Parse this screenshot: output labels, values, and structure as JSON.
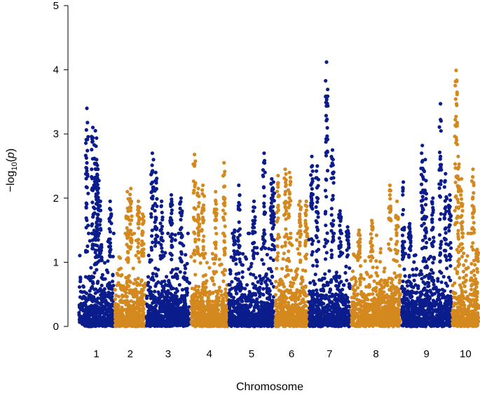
{
  "chart_data": {
    "type": "scatter",
    "subtype": "manhattan",
    "xlabel": "Chromosome",
    "ylabel_prefix": "−log",
    "ylabel_sub": "10",
    "ylabel_paren_open": "(",
    "ylabel_var": "p",
    "ylabel_paren_close": ")",
    "ylim": [
      0,
      5
    ],
    "yticks": [
      0,
      1,
      2,
      3,
      4,
      5
    ],
    "colors": {
      "odd": "#0b1c8c",
      "even": "#d4891e"
    },
    "chromosomes": [
      {
        "label": "1",
        "color": "odd",
        "range": [
          0.0,
          8.5
        ],
        "peaks": [
          [
            2.0,
            3.4
          ],
          [
            3.4,
            3.1
          ],
          [
            4.0,
            3.05
          ],
          [
            4.3,
            2.6
          ],
          [
            4.6,
            2.45
          ],
          [
            5.2,
            1.95
          ],
          [
            7.5,
            1.95
          ]
        ]
      },
      {
        "label": "2",
        "color": "even",
        "range": [
          8.5,
          16.0
        ],
        "peaks": [
          [
            11.6,
            2.1
          ],
          [
            12.4,
            2.15
          ],
          [
            14.2,
            1.95
          ],
          [
            15.2,
            1.75
          ]
        ]
      },
      {
        "label": "3",
        "color": "odd",
        "range": [
          16.0,
          26.5
        ],
        "peaks": [
          [
            17.5,
            2.7
          ],
          [
            18.3,
            2.4
          ],
          [
            19.7,
            1.95
          ],
          [
            22.0,
            2.05
          ],
          [
            24.3,
            2.0
          ]
        ]
      },
      {
        "label": "4",
        "color": "even",
        "range": [
          26.5,
          35.5
        ],
        "peaks": [
          [
            27.5,
            2.68
          ],
          [
            28.4,
            2.15
          ],
          [
            29.5,
            2.2
          ],
          [
            32.5,
            2.1
          ],
          [
            34.5,
            2.55
          ]
        ]
      },
      {
        "label": "5",
        "color": "odd",
        "range": [
          35.5,
          46.5
        ],
        "peaks": [
          [
            37.0,
            1.5
          ],
          [
            38.0,
            2.2
          ],
          [
            41.6,
            1.95
          ],
          [
            44.0,
            2.7
          ],
          [
            45.8,
            2.3
          ],
          [
            46.2,
            2.25
          ]
        ]
      },
      {
        "label": "6",
        "color": "even",
        "range": [
          46.5,
          54.5
        ],
        "peaks": [
          [
            47.3,
            2.35
          ],
          [
            49.0,
            2.45
          ],
          [
            50.0,
            2.4
          ],
          [
            52.5,
            1.95
          ],
          [
            54.0,
            1.95
          ]
        ]
      },
      {
        "label": "7",
        "color": "odd",
        "range": [
          54.5,
          64.5
        ],
        "peaks": [
          [
            55.3,
            2.65
          ],
          [
            56.6,
            2.5
          ],
          [
            58.8,
            4.12
          ],
          [
            60.2,
            2.75
          ],
          [
            62.0,
            1.8
          ],
          [
            63.8,
            1.55
          ]
        ]
      },
      {
        "label": "8",
        "color": "even",
        "range": [
          64.5,
          76.5
        ],
        "peaks": [
          [
            66.5,
            1.5
          ],
          [
            69.5,
            1.65
          ],
          [
            73.8,
            2.2
          ],
          [
            75.5,
            1.95
          ]
        ]
      },
      {
        "label": "9",
        "color": "odd",
        "range": [
          76.5,
          88.5
        ],
        "peaks": [
          [
            77.0,
            2.25
          ],
          [
            78.5,
            1.6
          ],
          [
            81.5,
            2.82
          ],
          [
            82.2,
            2.6
          ],
          [
            84.0,
            2.0
          ],
          [
            85.8,
            3.47
          ],
          [
            87.0,
            2.38
          ],
          [
            88.0,
            2.05
          ]
        ]
      },
      {
        "label": "10",
        "color": "even",
        "range": [
          88.5,
          95.0
        ],
        "peaks": [
          [
            89.5,
            3.99
          ],
          [
            90.0,
            2.65
          ],
          [
            90.8,
            2.3
          ],
          [
            93.5,
            2.45
          ],
          [
            94.5,
            1.2
          ]
        ]
      }
    ]
  }
}
